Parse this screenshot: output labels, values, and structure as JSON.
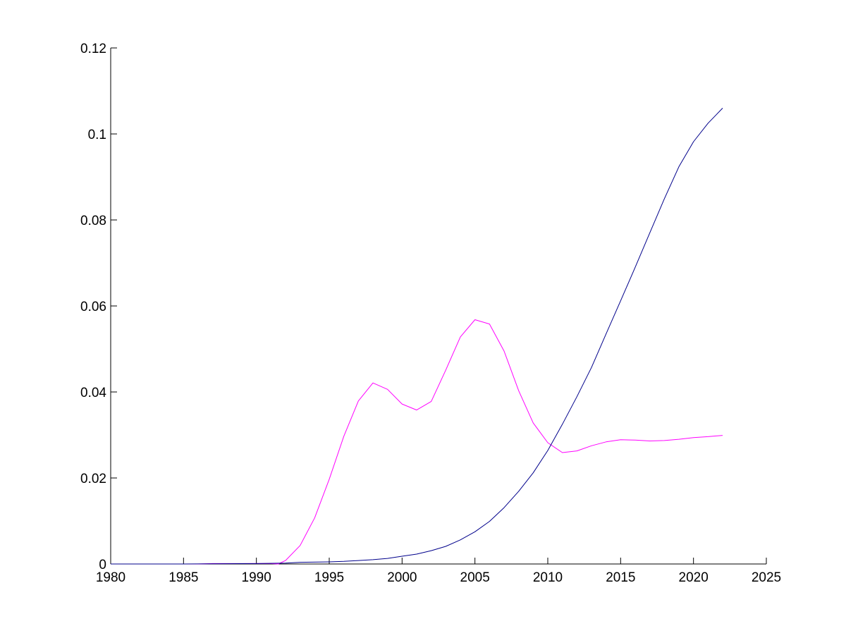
{
  "chart_data": {
    "type": "line",
    "title": "",
    "xlabel": "",
    "ylabel": "",
    "xlim": [
      1980,
      2025
    ],
    "ylim": [
      0,
      0.12
    ],
    "xticks": [
      1980,
      1985,
      1990,
      1995,
      2000,
      2005,
      2010,
      2015,
      2020,
      2025
    ],
    "yticks": [
      0,
      0.02,
      0.04,
      0.06,
      0.08,
      0.1,
      0.12
    ],
    "xtick_labels": [
      "1980",
      "1985",
      "1990",
      "1995",
      "2000",
      "2005",
      "2010",
      "2015",
      "2020",
      "2025"
    ],
    "ytick_labels": [
      "0",
      "0.02",
      "0.04",
      "0.06",
      "0.08",
      "0.1",
      "0.12"
    ],
    "grid": false,
    "legend": "none",
    "series": [
      {
        "color": "#ff00ff",
        "points": [
          [
            1980,
            0
          ],
          [
            1985,
            0
          ],
          [
            1986,
            0
          ],
          [
            1987,
            0.0001
          ],
          [
            1988,
            0.0001
          ],
          [
            1989,
            0.0001
          ],
          [
            1990,
            0.0001
          ],
          [
            1991,
            0.0001
          ],
          [
            1991.5,
            0
          ],
          [
            1992,
            0.0008
          ],
          [
            1993,
            0.0043
          ],
          [
            1994,
            0.0107
          ],
          [
            1995,
            0.0197
          ],
          [
            1996,
            0.0297
          ],
          [
            1997,
            0.0379
          ],
          [
            1998,
            0.0421
          ],
          [
            1999,
            0.0406
          ],
          [
            2000,
            0.0372
          ],
          [
            2001,
            0.0358
          ],
          [
            2002,
            0.0378
          ],
          [
            2003,
            0.0451
          ],
          [
            2004,
            0.0528
          ],
          [
            2005,
            0.0568
          ],
          [
            2006,
            0.0558
          ],
          [
            2007,
            0.0495
          ],
          [
            2008,
            0.0403
          ],
          [
            2009,
            0.0328
          ],
          [
            2010,
            0.0282
          ],
          [
            2011,
            0.0259
          ],
          [
            2012,
            0.0263
          ],
          [
            2013,
            0.0275
          ],
          [
            2014,
            0.0284
          ],
          [
            2015,
            0.0289
          ],
          [
            2016,
            0.0288
          ],
          [
            2017,
            0.0286
          ],
          [
            2018,
            0.0287
          ],
          [
            2019,
            0.029
          ],
          [
            2020,
            0.0294
          ],
          [
            2021,
            0.0296
          ],
          [
            2022,
            0.0299
          ]
        ]
      },
      {
        "color": "#00008b",
        "points": [
          [
            1980,
            0
          ],
          [
            1985,
            0
          ],
          [
            1990,
            0.0001
          ],
          [
            1992,
            0.0002
          ],
          [
            1993,
            0.0004
          ],
          [
            1995,
            0.0005
          ],
          [
            1996,
            0.0006
          ],
          [
            1997,
            0.0008
          ],
          [
            1998,
            0.001
          ],
          [
            1999,
            0.0013
          ],
          [
            2000,
            0.0018
          ],
          [
            2001,
            0.0023
          ],
          [
            2002,
            0.0031
          ],
          [
            2003,
            0.0041
          ],
          [
            2004,
            0.0056
          ],
          [
            2005,
            0.0075
          ],
          [
            2006,
            0.0099
          ],
          [
            2007,
            0.0131
          ],
          [
            2008,
            0.0169
          ],
          [
            2009,
            0.0212
          ],
          [
            2010,
            0.0264
          ],
          [
            2011,
            0.0325
          ],
          [
            2012,
            0.0389
          ],
          [
            2013,
            0.0457
          ],
          [
            2014,
            0.0535
          ],
          [
            2015,
            0.0612
          ],
          [
            2016,
            0.069
          ],
          [
            2017,
            0.077
          ],
          [
            2018,
            0.0849
          ],
          [
            2019,
            0.0924
          ],
          [
            2020,
            0.0982
          ],
          [
            2021,
            0.1025
          ],
          [
            2022,
            0.106
          ]
        ]
      }
    ]
  }
}
